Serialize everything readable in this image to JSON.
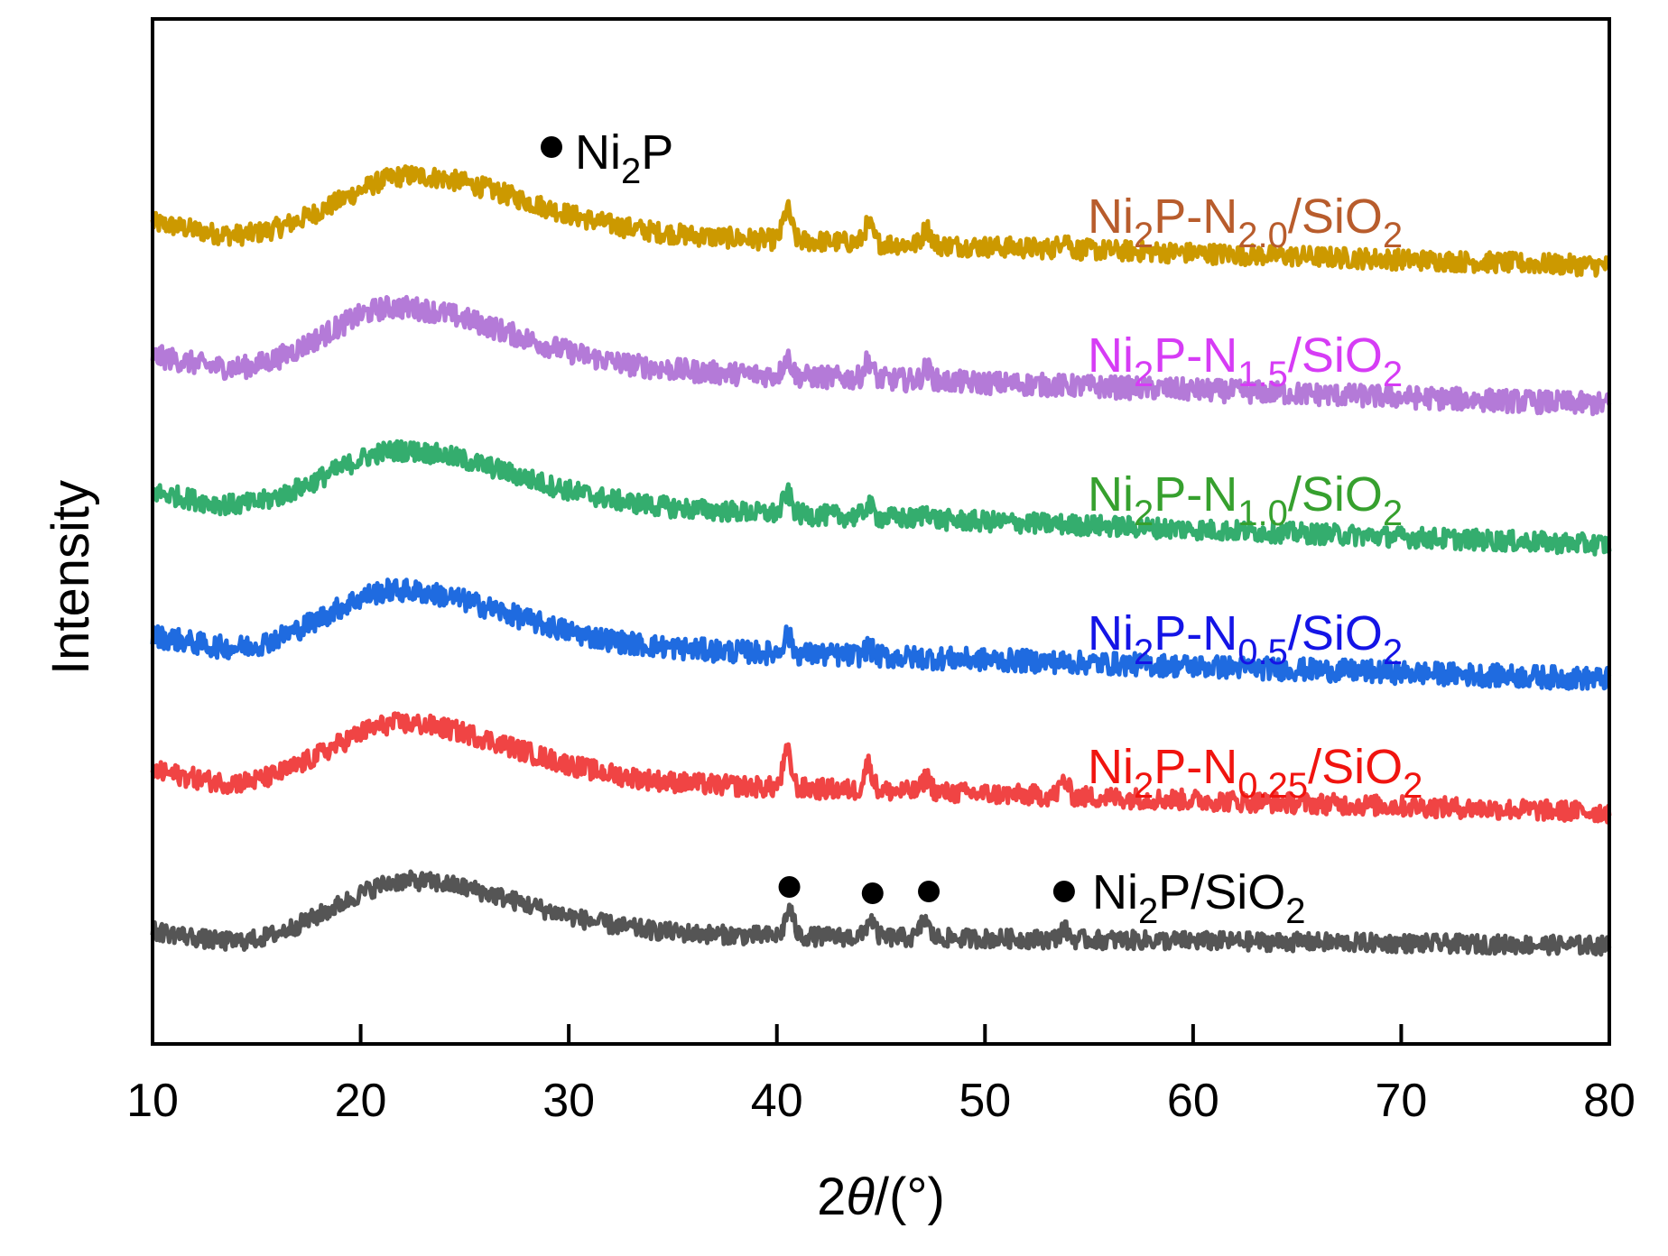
{
  "chart_data": {
    "type": "line",
    "title": "",
    "xlabel_prefix": "2",
    "xlabel_theta": "θ",
    "xlabel_suffix": "/(°)",
    "xlabel": "2θ/(°)",
    "ylabel": "Intensity",
    "xlim": [
      10,
      80
    ],
    "ylim": [
      0,
      100
    ],
    "xticks": [
      10,
      20,
      30,
      40,
      50,
      60,
      70,
      80
    ],
    "yticks": [],
    "grid": false,
    "legend": {
      "marker_symbol": "●",
      "marker_text": "Ni",
      "marker_sub": "2",
      "marker_text2": "P",
      "placement": "top-left"
    },
    "peak_markers": {
      "series": "Ni2P/SiO2",
      "positions_2theta": [
        40.6,
        44.6,
        47.3,
        53.8
      ],
      "phase": "Ni2P"
    },
    "series": [
      {
        "name": "Ni2P-N2.0/SiO2",
        "label_parts": [
          "Ni",
          "2",
          "P-N",
          "2.0",
          "/SiO",
          "2"
        ],
        "line_color": "#CC9900",
        "label_color": "#B85C2C",
        "baseline_start": 80.3,
        "baseline_end": 75.9,
        "hump_center": 22.5,
        "hump_height": 5.2,
        "peaks": [
          [
            40.5,
            3.0
          ],
          [
            44.4,
            1.8
          ],
          [
            47.2,
            1.6
          ],
          [
            53.8,
            1.2
          ]
        ],
        "noise": 1.0
      },
      {
        "name": "Ni2P-N1.5/SiO2",
        "label_parts": [
          "Ni",
          "2",
          "P-N",
          "1.5",
          "/SiO",
          "2"
        ],
        "line_color": "#B47AD8",
        "label_color": "#D63CF5",
        "baseline_start": 67.3,
        "baseline_end": 62.4,
        "hump_center": 21.8,
        "hump_height": 5.4,
        "peaks": [
          [
            40.5,
            1.8
          ],
          [
            44.4,
            1.8
          ],
          [
            47.2,
            1.2
          ]
        ],
        "noise": 1.1
      },
      {
        "name": "Ni2P-N1.0/SiO2",
        "label_parts": [
          "Ni",
          "2",
          "P-N",
          "1.0",
          "/SiO",
          "2"
        ],
        "line_color": "#34AD6E",
        "label_color": "#36A02E",
        "baseline_start": 54.0,
        "baseline_end": 48.7,
        "hump_center": 22.0,
        "hump_height": 4.8,
        "peaks": [
          [
            40.5,
            2.0
          ],
          [
            44.4,
            1.2
          ],
          [
            47.2,
            0.8
          ]
        ],
        "noise": 1.0
      },
      {
        "name": "Ni2P-N0.5/SiO2",
        "label_parts": [
          "Ni",
          "2",
          "P-N",
          "0.5",
          "/SiO",
          "2"
        ],
        "line_color": "#1F6BE0",
        "label_color": "#1414E6",
        "baseline_start": 40.0,
        "baseline_end": 35.6,
        "hump_center": 21.8,
        "hump_height": 5.0,
        "peaks": [
          [
            40.5,
            1.8
          ],
          [
            44.4,
            0.8
          ]
        ],
        "noise": 1.1
      },
      {
        "name": "Ni2P-N0.25/SiO2",
        "label_parts": [
          "Ni",
          "2",
          "P-N",
          "0.25",
          "/SiO",
          "2"
        ],
        "line_color": "#F04444",
        "label_color": "#F0140F",
        "baseline_start": 26.8,
        "baseline_end": 22.6,
        "hump_center": 22.0,
        "hump_height": 5.2,
        "peaks": [
          [
            40.5,
            3.4
          ],
          [
            44.4,
            2.6
          ],
          [
            47.2,
            1.4
          ],
          [
            53.8,
            1.5
          ]
        ],
        "noise": 1.0
      },
      {
        "name": "Ni2P/SiO2",
        "label_parts": [
          "Ni",
          "2",
          "P/SiO",
          "2",
          "",
          ""
        ],
        "line_color": "#555555",
        "label_color": "#000000",
        "baseline_start": 11.2,
        "baseline_end": 9.6,
        "hump_center": 22.3,
        "hump_height": 5.0,
        "peaks": [
          [
            40.6,
            2.6
          ],
          [
            44.5,
            1.8
          ],
          [
            47.1,
            1.8
          ],
          [
            53.8,
            1.0
          ]
        ],
        "noise": 0.9
      }
    ]
  }
}
